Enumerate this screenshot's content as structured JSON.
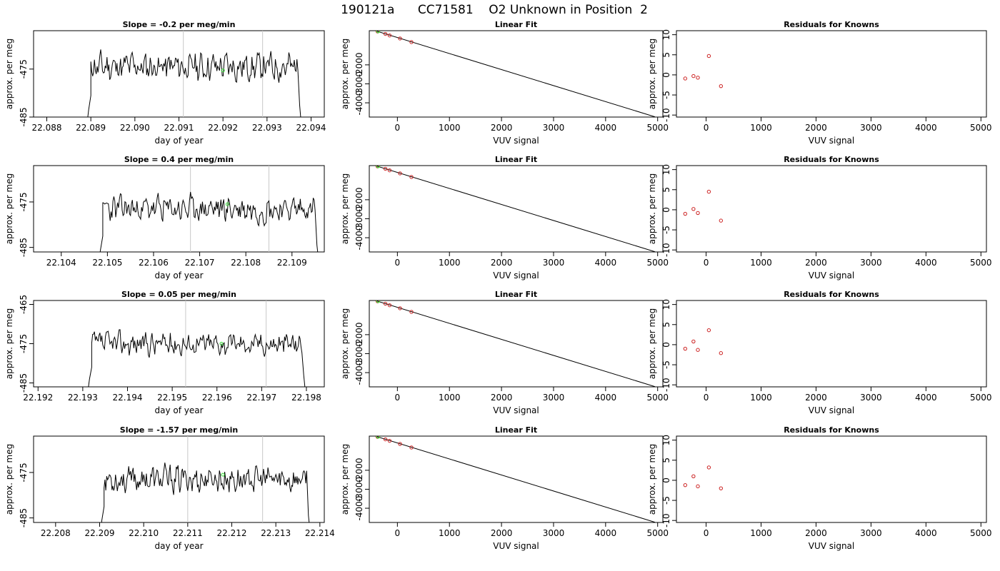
{
  "figure": {
    "title": "190121a      CC71581    O2 Unknown in Position  2"
  },
  "colors": {
    "line": "#000000",
    "vline": "#c8c8c8",
    "green": "#33dd33",
    "red": "#cc2222"
  },
  "chart_data": [
    {
      "row": 0,
      "col": 0,
      "type": "line",
      "title": "Slope =  -0.2  per meg/min",
      "xlabel": "day of year",
      "ylabel": "approx. per meg",
      "xlim": [
        22.0877,
        22.0943
      ],
      "ylim": [
        -485,
        -467
      ],
      "xticks": [
        "22.088",
        "22.089",
        "22.090",
        "22.091",
        "22.092",
        "22.093",
        "22.094"
      ],
      "yticks": [
        "-475",
        "-485"
      ],
      "series": [
        {
          "start": 22.089,
          "end": 22.0937,
          "base": -474.5,
          "seed": 11
        }
      ],
      "vlines": [
        22.0911,
        22.0929
      ],
      "green_point": [
        22.092,
        -475.3
      ]
    },
    {
      "row": 0,
      "col": 1,
      "type": "scatter",
      "title": "Linear Fit",
      "xlabel": "VUV signal",
      "ylabel": "approx. per meg",
      "xlim": [
        -540,
        5100
      ],
      "ylim": [
        -4750,
        -200
      ],
      "xticks": [
        "0",
        "1000",
        "2000",
        "3000",
        "4000",
        "5000"
      ],
      "yticks": [
        "-2000",
        "-3000",
        "-4000"
      ],
      "fit_line": {
        "x": [
          -450,
          4950
        ],
        "y": [
          -180,
          -4740
        ]
      },
      "points": [
        {
          "x": -380,
          "y": -240
        },
        {
          "x": -230,
          "y": -370
        },
        {
          "x": -150,
          "y": -450
        },
        {
          "x": 50,
          "y": -610
        },
        {
          "x": 270,
          "y": -800
        }
      ],
      "green_point": {
        "x": -370,
        "y": -225
      }
    },
    {
      "row": 0,
      "col": 2,
      "type": "scatter",
      "title": "Residuals for Knowns",
      "xlabel": "VUV signal",
      "ylabel": "approx. per meg",
      "xlim": [
        -540,
        5100
      ],
      "ylim": [
        -10.5,
        11
      ],
      "xticks": [
        "0",
        "1000",
        "2000",
        "3000",
        "4000",
        "5000"
      ],
      "yticks": [
        "10",
        "5",
        "0",
        "-5",
        "-10"
      ],
      "points": [
        {
          "x": -380,
          "y": -0.9
        },
        {
          "x": -230,
          "y": -0.3
        },
        {
          "x": -150,
          "y": -0.7
        },
        {
          "x": 50,
          "y": 4.7
        },
        {
          "x": 270,
          "y": -2.8
        }
      ]
    },
    {
      "row": 1,
      "col": 0,
      "type": "line",
      "title": "Slope =  0.4  per meg/min",
      "xlabel": "day of year",
      "ylabel": "approx. per meg",
      "xlim": [
        22.1034,
        22.1097
      ],
      "ylim": [
        -486,
        -467
      ],
      "xticks": [
        "22.104",
        "22.105",
        "22.106",
        "22.107",
        "22.108",
        "22.109"
      ],
      "yticks": [
        "-475",
        "-485"
      ],
      "series": [
        {
          "start": 22.1049,
          "end": 22.1095,
          "base": -476.5,
          "seed": 23
        }
      ],
      "vlines": [
        22.1068,
        22.1085
      ],
      "green_point": [
        22.1076,
        -475.5
      ]
    },
    {
      "row": 1,
      "col": 1,
      "type": "scatter",
      "title": "Linear Fit",
      "xlabel": "VUV signal",
      "ylabel": "approx. per meg",
      "xlim": [
        -540,
        5100
      ],
      "ylim": [
        -4750,
        -200
      ],
      "xticks": [
        "0",
        "1000",
        "2000",
        "3000",
        "4000",
        "5000"
      ],
      "yticks": [
        "-2000",
        "-3000",
        "-4000"
      ],
      "fit_line": {
        "x": [
          -450,
          4950
        ],
        "y": [
          -180,
          -4740
        ]
      },
      "points": [
        {
          "x": -380,
          "y": -240
        },
        {
          "x": -230,
          "y": -370
        },
        {
          "x": -150,
          "y": -450
        },
        {
          "x": 50,
          "y": -610
        },
        {
          "x": 270,
          "y": -800
        }
      ],
      "green_point": {
        "x": -370,
        "y": -225
      }
    },
    {
      "row": 1,
      "col": 2,
      "type": "scatter",
      "title": "Residuals for Knowns",
      "xlabel": "VUV signal",
      "ylabel": "approx. per meg",
      "xlim": [
        -540,
        5100
      ],
      "ylim": [
        -10.5,
        11
      ],
      "xticks": [
        "0",
        "1000",
        "2000",
        "3000",
        "4000",
        "5000"
      ],
      "yticks": [
        "10",
        "5",
        "0",
        "-5",
        "-10"
      ],
      "points": [
        {
          "x": -380,
          "y": -1.0
        },
        {
          "x": -230,
          "y": 0.2
        },
        {
          "x": -150,
          "y": -0.8
        },
        {
          "x": 50,
          "y": 4.5
        },
        {
          "x": 270,
          "y": -2.7
        }
      ]
    },
    {
      "row": 2,
      "col": 0,
      "type": "line",
      "title": "Slope =  0.05  per meg/min",
      "xlabel": "day of year",
      "ylabel": "approx. per meg",
      "xlim": [
        22.1919,
        22.1984
      ],
      "ylim": [
        -486,
        -464
      ],
      "xticks": [
        "22.192",
        "22.193",
        "22.194",
        "22.195",
        "22.196",
        "22.197",
        "22.198"
      ],
      "yticks": [
        "-465",
        "-475",
        "-485"
      ],
      "series": [
        {
          "start": 22.1932,
          "end": 22.1979,
          "base": -475.0,
          "seed": 37
        }
      ],
      "vlines": [
        22.1953,
        22.1971
      ],
      "green_point": [
        22.1961,
        -475.0
      ]
    },
    {
      "row": 2,
      "col": 1,
      "type": "scatter",
      "title": "Linear Fit",
      "xlabel": "VUV signal",
      "ylabel": "approx. per meg",
      "xlim": [
        -540,
        5100
      ],
      "ylim": [
        -4750,
        -200
      ],
      "xticks": [
        "0",
        "1000",
        "2000",
        "3000",
        "4000",
        "5000"
      ],
      "yticks": [
        "-2000",
        "-3000",
        "-4000"
      ],
      "fit_line": {
        "x": [
          -450,
          4950
        ],
        "y": [
          -180,
          -4740
        ]
      },
      "points": [
        {
          "x": -380,
          "y": -240
        },
        {
          "x": -230,
          "y": -370
        },
        {
          "x": -150,
          "y": -450
        },
        {
          "x": 50,
          "y": -610
        },
        {
          "x": 270,
          "y": -800
        }
      ],
      "green_point": {
        "x": -370,
        "y": -225
      }
    },
    {
      "row": 2,
      "col": 2,
      "type": "scatter",
      "title": "Residuals for Knowns",
      "xlabel": "VUV signal",
      "ylabel": "approx. per meg",
      "xlim": [
        -540,
        5100
      ],
      "ylim": [
        -10.5,
        11
      ],
      "xticks": [
        "0",
        "1000",
        "2000",
        "3000",
        "4000",
        "5000"
      ],
      "yticks": [
        "10",
        "5",
        "0",
        "-5",
        "-10"
      ],
      "points": [
        {
          "x": -380,
          "y": -1.0
        },
        {
          "x": -230,
          "y": 0.8
        },
        {
          "x": -150,
          "y": -1.3
        },
        {
          "x": 50,
          "y": 3.6
        },
        {
          "x": 270,
          "y": -2.1
        }
      ]
    },
    {
      "row": 3,
      "col": 0,
      "type": "line",
      "title": "Slope =  -1.57  per meg/min",
      "xlabel": "day of year",
      "ylabel": "approx. per meg",
      "xlim": [
        22.2075,
        22.2141
      ],
      "ylim": [
        -486,
        -467
      ],
      "xticks": [
        "22.208",
        "22.209",
        "22.210",
        "22.211",
        "22.212",
        "22.213",
        "22.214"
      ],
      "yticks": [
        "-475",
        "-485"
      ],
      "series": [
        {
          "start": 22.2091,
          "end": 22.2137,
          "base": -476.5,
          "seed": 53
        }
      ],
      "vlines": [
        22.211,
        22.2127
      ],
      "green_point": [
        22.2118,
        -475.5
      ]
    },
    {
      "row": 3,
      "col": 1,
      "type": "scatter",
      "title": "Linear Fit",
      "xlabel": "VUV signal",
      "ylabel": "approx. per meg",
      "xlim": [
        -540,
        5100
      ],
      "ylim": [
        -4750,
        -200
      ],
      "xticks": [
        "0",
        "1000",
        "2000",
        "3000",
        "4000",
        "5000"
      ],
      "yticks": [
        "-2000",
        "-3000",
        "-4000"
      ],
      "fit_line": {
        "x": [
          -450,
          4950
        ],
        "y": [
          -180,
          -4740
        ]
      },
      "points": [
        {
          "x": -380,
          "y": -240
        },
        {
          "x": -230,
          "y": -370
        },
        {
          "x": -150,
          "y": -450
        },
        {
          "x": 50,
          "y": -610
        },
        {
          "x": 270,
          "y": -800
        }
      ],
      "green_point": {
        "x": -370,
        "y": -225
      }
    },
    {
      "row": 3,
      "col": 2,
      "type": "scatter",
      "title": "Residuals for Knowns",
      "xlabel": "VUV signal",
      "ylabel": "approx. per meg",
      "xlim": [
        -540,
        5100
      ],
      "ylim": [
        -10.5,
        11
      ],
      "xticks": [
        "0",
        "1000",
        "2000",
        "3000",
        "4000",
        "5000"
      ],
      "yticks": [
        "10",
        "5",
        "0",
        "-5",
        "-10"
      ],
      "points": [
        {
          "x": -380,
          "y": -1.2
        },
        {
          "x": -230,
          "y": 1.0
        },
        {
          "x": -150,
          "y": -1.5
        },
        {
          "x": 50,
          "y": 3.2
        },
        {
          "x": 270,
          "y": -2.0
        }
      ]
    }
  ]
}
